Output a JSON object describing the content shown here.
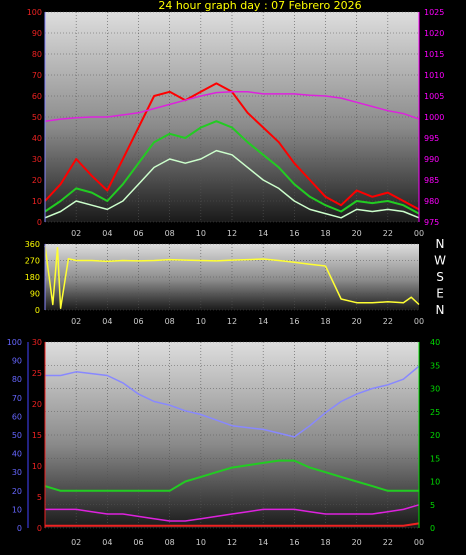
{
  "title": "24 hour graph day : 07 Febrero 2026",
  "colors": {
    "title": "#ffff00",
    "wind_max": "#ff0000",
    "wind_avg": "#22cc22",
    "wind_min": "#ccffcc",
    "pressure": "#dd22dd",
    "direction": "#ffff33",
    "humidity": "#8888ff",
    "temp": "#ee2222",
    "temp_green": "#22cc22",
    "rain": "#dd22dd",
    "left_axis": "#4444ff",
    "pressure_axis": "#ff00ff",
    "green_axis": "#00dd00"
  },
  "x_ticks": [
    "02",
    "04",
    "06",
    "08",
    "10",
    "12",
    "14",
    "16",
    "18",
    "20",
    "22",
    "00"
  ],
  "chart_data": [
    {
      "type": "line",
      "x_hours": [
        0,
        1,
        2,
        3,
        4,
        5,
        6,
        7,
        8,
        9,
        10,
        11,
        12,
        13,
        14,
        15,
        16,
        17,
        18,
        19,
        20,
        21,
        22,
        23,
        24
      ],
      "y_left_ticks": [
        "100",
        "90",
        "80",
        "70",
        "60",
        "50",
        "40",
        "30",
        "20",
        "10",
        "0"
      ],
      "y_right_ticks": [
        "1025",
        "1020",
        "1015",
        "1010",
        "1005",
        "1000",
        "995",
        "990",
        "985",
        "980",
        "975"
      ],
      "ylim_left": [
        0,
        100
      ],
      "ylim_right": [
        975,
        1025
      ],
      "series": [
        {
          "values": [
            10,
            18,
            30,
            22,
            15,
            30,
            45,
            60,
            62,
            58,
            62,
            66,
            62,
            52,
            45,
            38,
            28,
            20,
            12,
            8,
            15,
            12,
            14,
            10,
            6
          ]
        },
        {
          "values": [
            5,
            10,
            16,
            14,
            10,
            18,
            28,
            38,
            42,
            40,
            45,
            48,
            45,
            38,
            32,
            26,
            18,
            12,
            8,
            5,
            10,
            9,
            10,
            8,
            4
          ]
        },
        {
          "values": [
            2,
            5,
            10,
            8,
            6,
            10,
            18,
            26,
            30,
            28,
            30,
            34,
            32,
            26,
            20,
            16,
            10,
            6,
            4,
            2,
            6,
            5,
            6,
            5,
            2
          ]
        },
        {
          "values": [
            999,
            999.5,
            999.8,
            1000,
            1000,
            1000.5,
            1001,
            1002,
            1003,
            1004,
            1005,
            1005.8,
            1006,
            1006,
            1005.5,
            1005.5,
            1005.5,
            1005.2,
            1005,
            1004.5,
            1003.5,
            1002.5,
            1001.5,
            1000.8,
            999.5
          ]
        }
      ]
    },
    {
      "type": "line",
      "x_hours": [
        0,
        0.5,
        0.8,
        1,
        1.5,
        2,
        3,
        4,
        5,
        6,
        7,
        8,
        9,
        10,
        11,
        12,
        13,
        14,
        15,
        16,
        17,
        18,
        19,
        20,
        21,
        22,
        23,
        23.5,
        24
      ],
      "y_left_ticks": [
        "360",
        "270",
        "180",
        "90",
        "0"
      ],
      "direction_labels": [
        "N",
        "W",
        "S",
        "E",
        "N"
      ],
      "ylim": [
        0,
        360
      ],
      "series": [
        {
          "values": [
            350,
            30,
            340,
            10,
            280,
            270,
            270,
            265,
            270,
            268,
            270,
            275,
            272,
            270,
            268,
            272,
            275,
            278,
            270,
            260,
            250,
            240,
            60,
            40,
            40,
            45,
            40,
            70,
            30
          ]
        }
      ]
    },
    {
      "type": "line",
      "x_hours": [
        0,
        1,
        2,
        3,
        4,
        5,
        6,
        7,
        8,
        9,
        10,
        11,
        12,
        13,
        14,
        15,
        16,
        17,
        18,
        19,
        20,
        21,
        22,
        23,
        24
      ],
      "y_left_ticks": [
        "100",
        "90",
        "80",
        "70",
        "60",
        "50",
        "40",
        "30",
        "20",
        "10",
        "0"
      ],
      "y_mid_ticks": [
        "30",
        "25",
        "20",
        "15",
        "10",
        "5",
        "0"
      ],
      "y_right_ticks": [
        "40",
        "35",
        "30",
        "25",
        "20",
        "15",
        "10",
        "5",
        "0"
      ],
      "ylim_left": [
        0,
        100
      ],
      "ylim_right": [
        0,
        40
      ],
      "series": [
        {
          "values": [
            82,
            82,
            84,
            83,
            82,
            78,
            72,
            68,
            66,
            63,
            61,
            58,
            55,
            54,
            53,
            51,
            49,
            55,
            62,
            68,
            72,
            75,
            77,
            80,
            87
          ]
        },
        {
          "values": [
            9,
            8,
            8,
            8,
            8,
            8,
            8,
            8,
            8,
            10,
            11,
            12,
            13,
            13.5,
            14,
            14.5,
            14.5,
            13,
            12,
            11,
            10,
            9,
            8,
            8,
            8
          ]
        },
        {
          "values": [
            4,
            4,
            4,
            3.5,
            3,
            3,
            2.5,
            2,
            1.5,
            1.5,
            2,
            2.5,
            3,
            3.5,
            4,
            4,
            4,
            3.5,
            3,
            3,
            3,
            3,
            3.5,
            4,
            5
          ]
        },
        {
          "values": [
            0.5,
            0.5,
            0.5,
            0.5,
            0.5,
            0.5,
            0.5,
            0.5,
            0.5,
            0.5,
            0.5,
            0.5,
            0.5,
            0.5,
            0.5,
            0.5,
            0.5,
            0.5,
            0.5,
            0.5,
            0.5,
            0.5,
            0.5,
            0.5,
            1
          ]
        }
      ]
    }
  ]
}
